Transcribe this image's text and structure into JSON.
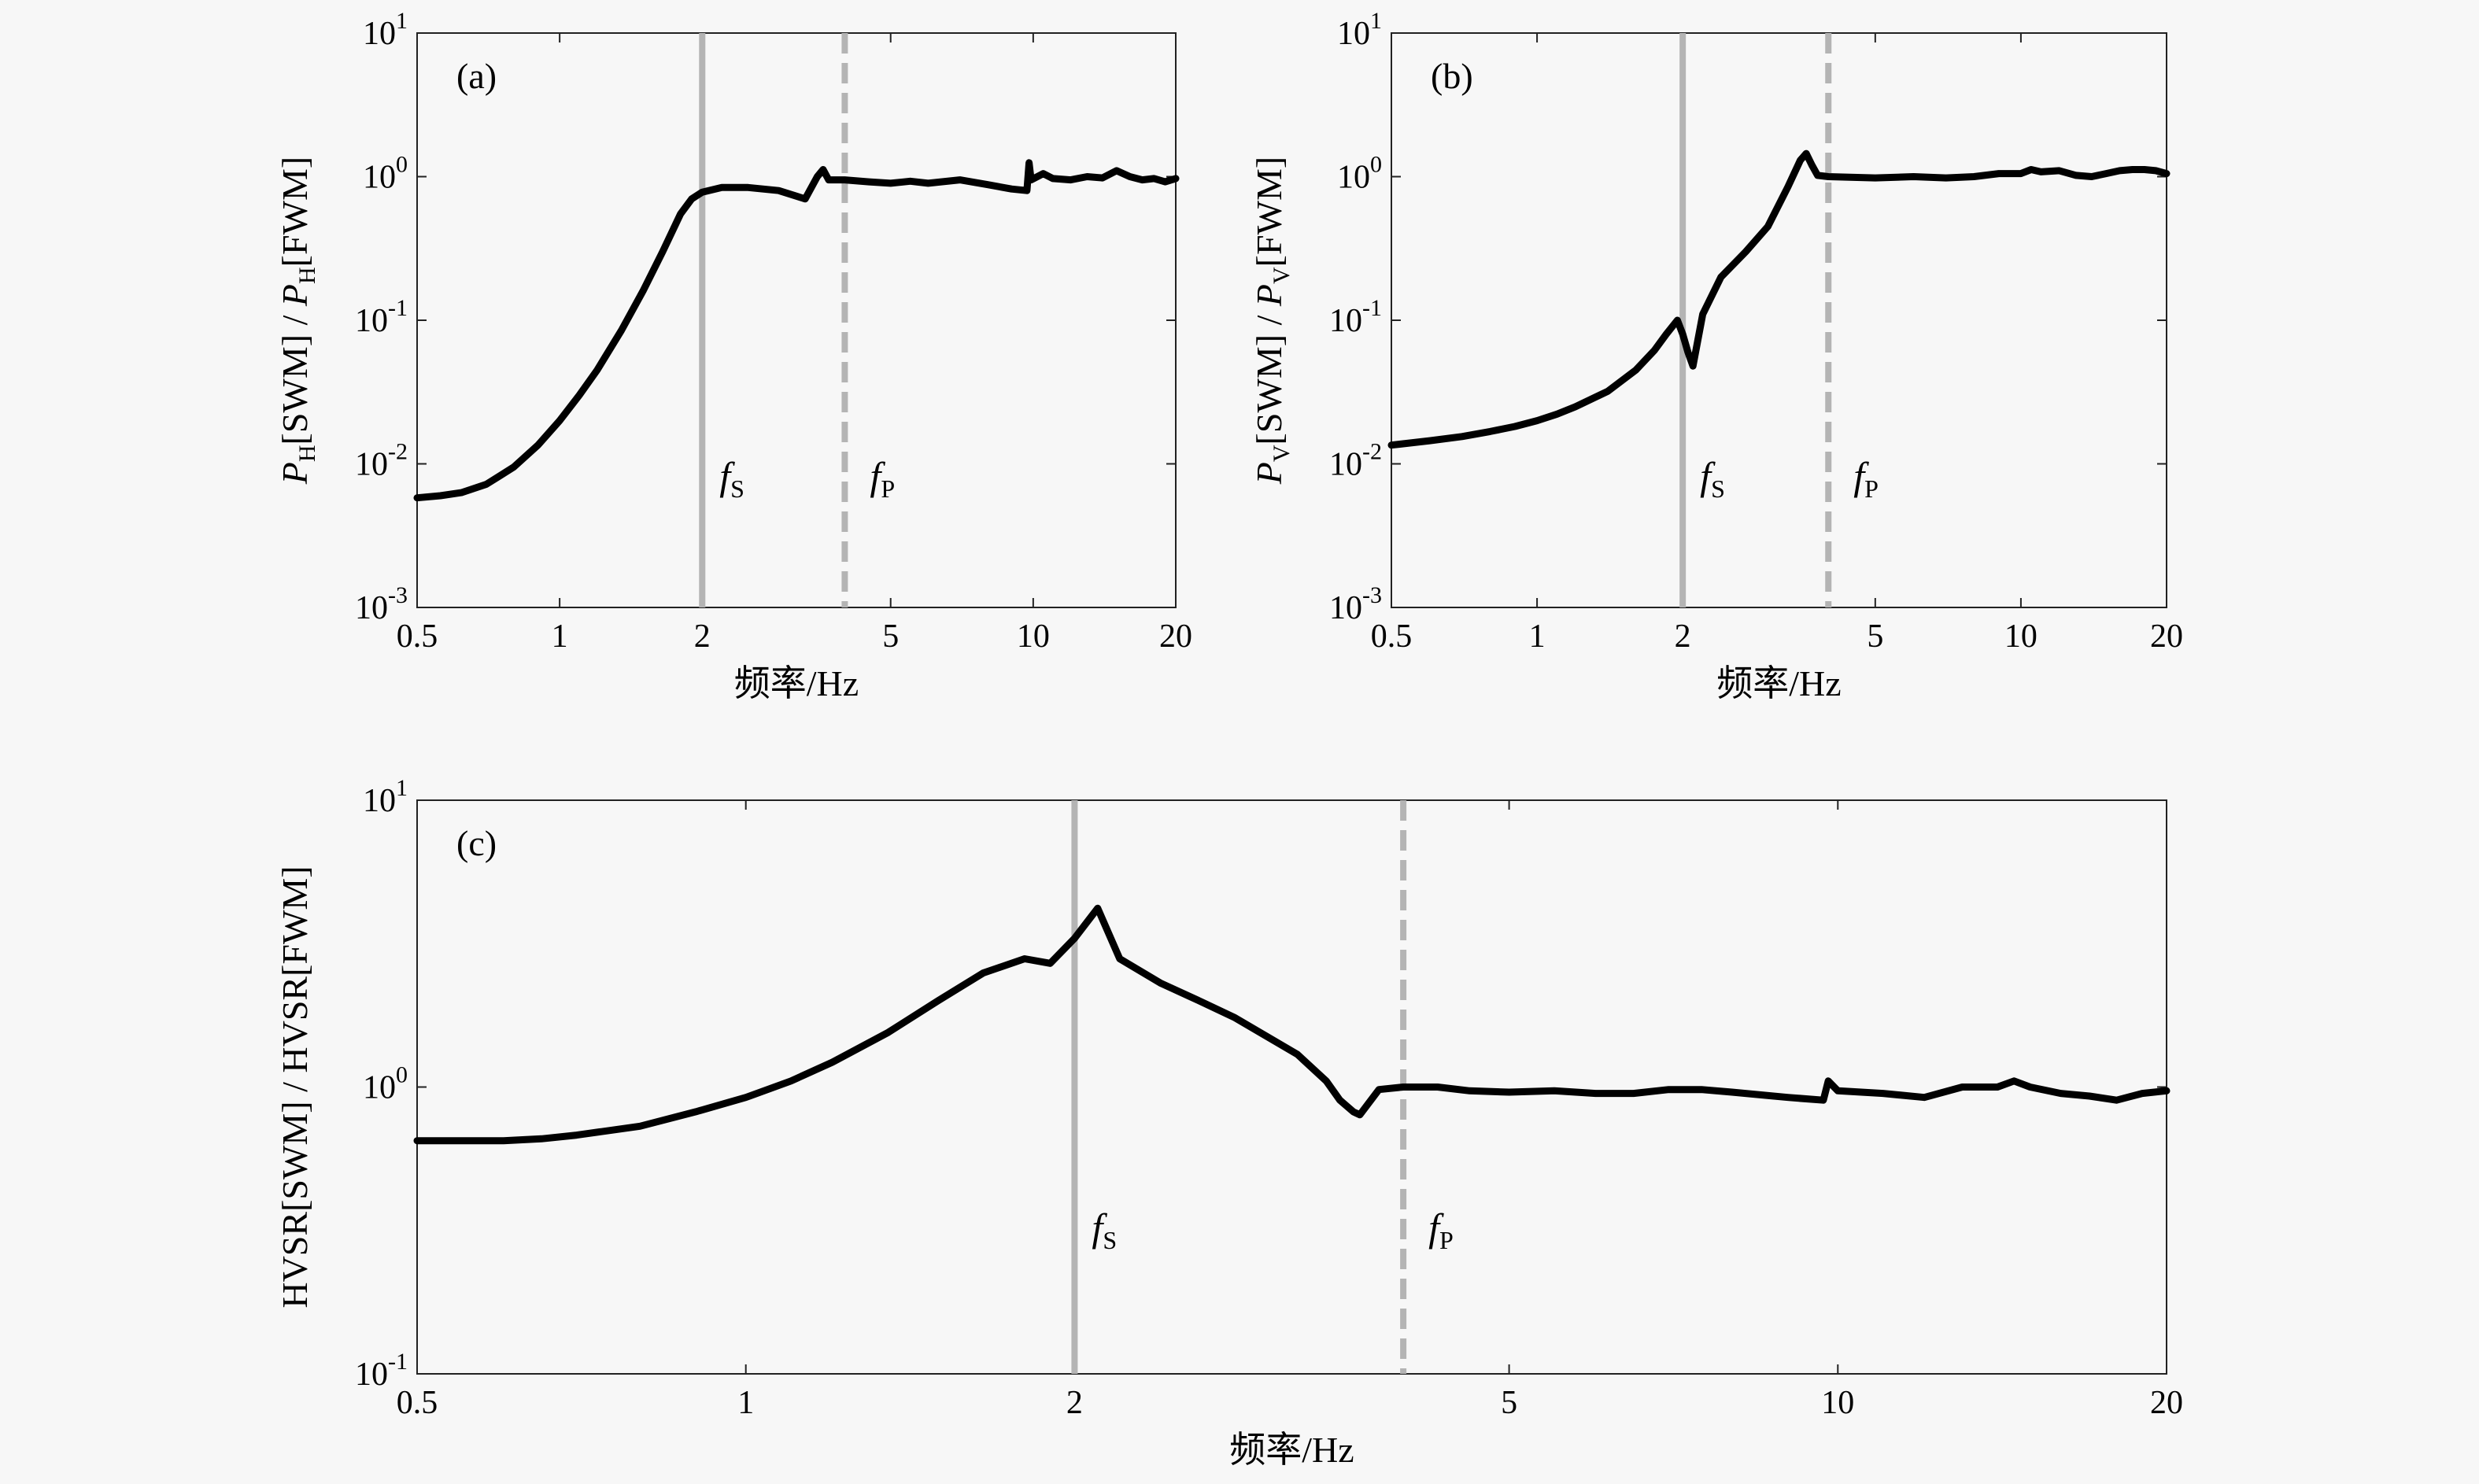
{
  "figure": {
    "x_axis_label": "频率/Hz",
    "fs_text": "f",
    "fs_sub": "S",
    "fp_text": "f",
    "fp_sub": "P"
  },
  "chart_data": [
    {
      "id": "a",
      "type": "line",
      "panel_label": "(a)",
      "ylabel_parts": [
        {
          "t": "P",
          "italic": true
        },
        {
          "t": "H",
          "sub": true
        },
        {
          "t": "[SWM] / "
        },
        {
          "t": "P",
          "italic": true
        },
        {
          "t": "H",
          "sub": true
        },
        {
          "t": "[FWM]"
        }
      ],
      "xscale": "log",
      "yscale": "log",
      "xlim": [
        0.5,
        20
      ],
      "ylim": [
        0.001,
        10
      ],
      "xticks": [
        0.5,
        1,
        2,
        5,
        10,
        20
      ],
      "xtick_labels": [
        "0.5",
        "1",
        "2",
        "5",
        "10",
        "20"
      ],
      "yticks": [
        0.001,
        0.01,
        0.1,
        1,
        10
      ],
      "ytick_exponents": [
        "-3",
        "-2",
        "-1",
        "0",
        "1"
      ],
      "ytick_base": "10",
      "fs": 2,
      "fp": 4,
      "grid": false,
      "series": [
        {
          "x": [
            0.5,
            0.56,
            0.62,
            0.7,
            0.8,
            0.9,
            1.0,
            1.1,
            1.2,
            1.35,
            1.5,
            1.65,
            1.8,
            1.9,
            2.0,
            2.2,
            2.5,
            2.9,
            3.3,
            3.5,
            3.6,
            3.7,
            3.8,
            4.0,
            4.5,
            5.0,
            5.5,
            6.0,
            7.0,
            8.0,
            9.0,
            9.7,
            9.8,
            9.9,
            10.5,
            11,
            12,
            13,
            14,
            15,
            16,
            17,
            18,
            19,
            20
          ],
          "y": [
            0.0058,
            0.006,
            0.0063,
            0.0072,
            0.0095,
            0.0135,
            0.02,
            0.03,
            0.045,
            0.085,
            0.16,
            0.3,
            0.55,
            0.7,
            0.78,
            0.84,
            0.84,
            0.8,
            0.7,
            1.0,
            1.12,
            0.95,
            0.95,
            0.95,
            0.92,
            0.9,
            0.93,
            0.9,
            0.95,
            0.88,
            0.82,
            0.8,
            1.25,
            0.95,
            1.05,
            0.97,
            0.95,
            1.0,
            0.98,
            1.1,
            1.0,
            0.95,
            0.97,
            0.92,
            0.97
          ]
        }
      ]
    },
    {
      "id": "b",
      "type": "line",
      "panel_label": "(b)",
      "ylabel_parts": [
        {
          "t": "P",
          "italic": true
        },
        {
          "t": "V",
          "sub": true
        },
        {
          "t": "[SWM] / "
        },
        {
          "t": "P",
          "italic": true
        },
        {
          "t": "V",
          "sub": true
        },
        {
          "t": "[FWM]"
        }
      ],
      "xscale": "log",
      "yscale": "log",
      "xlim": [
        0.5,
        20
      ],
      "ylim": [
        0.001,
        10
      ],
      "xticks": [
        0.5,
        1,
        2,
        5,
        10,
        20
      ],
      "xtick_labels": [
        "0.5",
        "1",
        "2",
        "5",
        "10",
        "20"
      ],
      "yticks": [
        0.001,
        0.01,
        0.1,
        1,
        10
      ],
      "ytick_exponents": [
        "-3",
        "-2",
        "-1",
        "0",
        "1"
      ],
      "ytick_base": "10",
      "fs": 2,
      "fp": 4,
      "grid": false,
      "series": [
        {
          "x": [
            0.5,
            0.6,
            0.7,
            0.8,
            0.9,
            1.0,
            1.1,
            1.2,
            1.4,
            1.6,
            1.75,
            1.85,
            1.95,
            2.0,
            2.05,
            2.1,
            2.2,
            2.4,
            2.7,
            3.0,
            3.3,
            3.5,
            3.6,
            3.7,
            3.8,
            4.0,
            5.0,
            6.0,
            7.0,
            8.0,
            9.0,
            10.0,
            10.5,
            11,
            12,
            13,
            14,
            15,
            16,
            17,
            18,
            19,
            20
          ],
          "y": [
            0.0135,
            0.0145,
            0.0155,
            0.0168,
            0.0182,
            0.02,
            0.0222,
            0.025,
            0.032,
            0.045,
            0.062,
            0.08,
            0.1,
            0.08,
            0.06,
            0.048,
            0.11,
            0.2,
            0.3,
            0.45,
            0.85,
            1.3,
            1.45,
            1.2,
            1.02,
            1.0,
            0.98,
            1.0,
            0.98,
            1.0,
            1.05,
            1.05,
            1.12,
            1.08,
            1.1,
            1.02,
            1.0,
            1.05,
            1.1,
            1.12,
            1.12,
            1.1,
            1.05
          ]
        }
      ]
    },
    {
      "id": "c",
      "type": "line",
      "panel_label": "(c)",
      "ylabel_parts": [
        {
          "t": "HVSR[SWM] / HVSR[FWM]"
        }
      ],
      "xscale": "log",
      "yscale": "log",
      "xlim": [
        0.5,
        20
      ],
      "ylim": [
        0.1,
        10
      ],
      "xticks": [
        0.5,
        1,
        2,
        5,
        10,
        20
      ],
      "xtick_labels": [
        "0.5",
        "1",
        "2",
        "5",
        "10",
        "20"
      ],
      "yticks": [
        0.1,
        1,
        10
      ],
      "ytick_exponents": [
        "-1",
        "0",
        "1"
      ],
      "ytick_base": "10",
      "fs": 2,
      "fp": 4,
      "grid": false,
      "series": [
        {
          "x": [
            0.5,
            0.55,
            0.6,
            0.65,
            0.7,
            0.8,
            0.9,
            1.0,
            1.1,
            1.2,
            1.35,
            1.5,
            1.65,
            1.8,
            1.9,
            2.0,
            2.1,
            2.2,
            2.4,
            2.6,
            2.8,
            3.0,
            3.2,
            3.4,
            3.5,
            3.6,
            3.65,
            3.8,
            4.0,
            4.3,
            4.6,
            5.0,
            5.5,
            6.0,
            6.5,
            7.0,
            7.5,
            8.0,
            9.0,
            9.7,
            9.8,
            10.0,
            11,
            12,
            13,
            14,
            14.5,
            15,
            16,
            17,
            18,
            19,
            20
          ],
          "y": [
            0.65,
            0.65,
            0.65,
            0.66,
            0.68,
            0.73,
            0.82,
            0.92,
            1.05,
            1.22,
            1.55,
            2.0,
            2.5,
            2.8,
            2.7,
            3.3,
            4.2,
            2.8,
            2.3,
            2.0,
            1.75,
            1.5,
            1.3,
            1.05,
            0.9,
            0.82,
            0.8,
            0.98,
            1.0,
            1.0,
            0.97,
            0.96,
            0.97,
            0.95,
            0.95,
            0.98,
            0.98,
            0.96,
            0.92,
            0.9,
            1.05,
            0.97,
            0.95,
            0.92,
            1.0,
            1.0,
            1.05,
            1.0,
            0.95,
            0.93,
            0.9,
            0.95,
            0.97
          ]
        }
      ]
    }
  ]
}
